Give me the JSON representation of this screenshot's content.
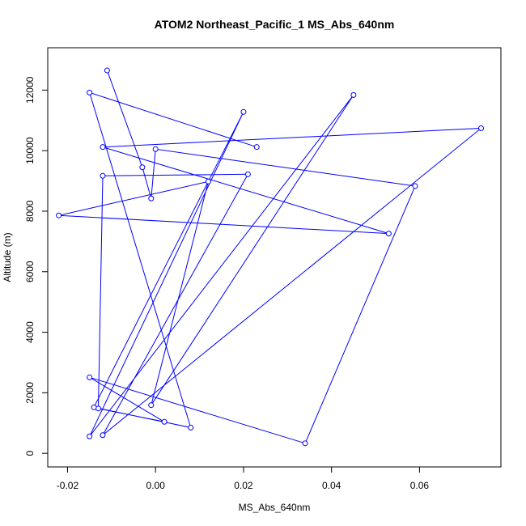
{
  "chart_data": {
    "type": "line",
    "title": "ATOM2 Northeast_Pacific_1 MS_Abs_640nm",
    "xlabel": "MS_Abs_640nm",
    "ylabel": "Altitude (m)",
    "xlim": [
      -0.0245,
      0.0785
    ],
    "ylim": [
      -450,
      13400
    ],
    "x_ticks": [
      -0.02,
      0.0,
      0.02,
      0.04,
      0.06
    ],
    "x_tick_labels": [
      "-0.02",
      "0.00",
      "0.02",
      "0.04",
      "0.06"
    ],
    "y_ticks": [
      0,
      2000,
      4000,
      6000,
      8000,
      10000,
      12000
    ],
    "y_tick_labels": [
      "0",
      "2000",
      "4000",
      "6000",
      "8000",
      "10000",
      "12000"
    ],
    "color": "#0000FF",
    "series": [
      {
        "x": [
          -0.011,
          -0.003,
          -0.001,
          0.0,
          0.059,
          0.034,
          -0.015,
          0.002,
          -0.013,
          -0.012,
          0.021,
          -0.012,
          0.074,
          -0.012,
          0.053,
          -0.022,
          0.012,
          -0.001,
          0.045,
          -0.015,
          0.02,
          -0.014,
          0.008,
          -0.015,
          0.023
        ],
        "y": [
          12650,
          9450,
          8420,
          10050,
          8830,
          330,
          2510,
          1040,
          1480,
          9170,
          9220,
          600,
          10740,
          10120,
          7260,
          7860,
          8980,
          1590,
          11840,
          560,
          11280,
          1520,
          850,
          11920,
          10120
        ]
      }
    ]
  }
}
